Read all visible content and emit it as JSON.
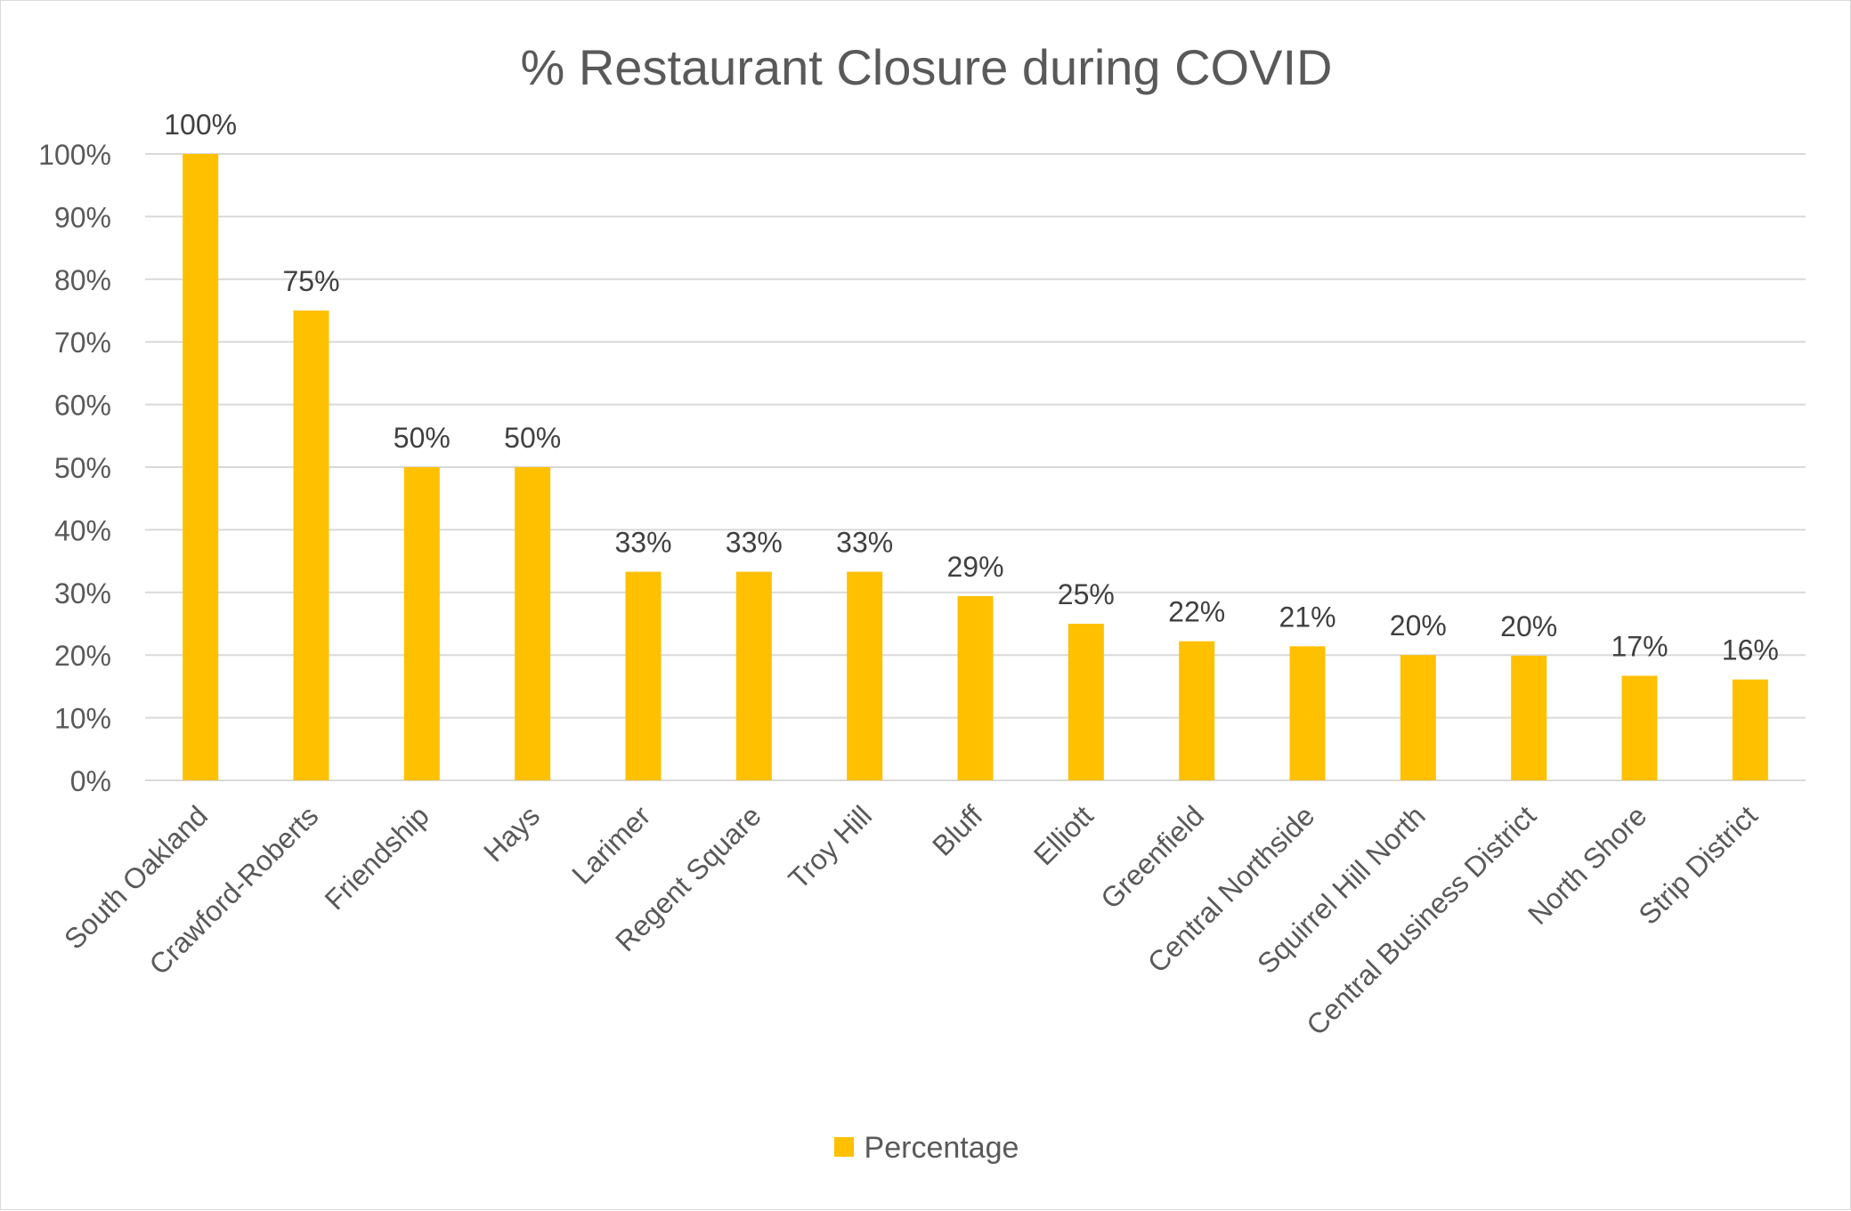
{
  "chart_data": {
    "type": "bar",
    "title": "% Restaurant Closure during COVID",
    "xlabel": "",
    "ylabel": "",
    "categories": [
      "South Oakland",
      "Crawford-Roberts",
      "Friendship",
      "Hays",
      "Larimer",
      "Regent Square",
      "Troy Hill",
      "Bluff",
      "Elliott",
      "Greenfield",
      "Central Northside",
      "Squirrel Hill North",
      "Central Business District",
      "North Shore",
      "Strip District"
    ],
    "series": [
      {
        "name": "Percentage",
        "color": "#ffc000",
        "values": [
          100,
          75,
          50,
          50,
          33.3,
          33.3,
          33.3,
          29.4,
          25,
          22.2,
          21.4,
          20,
          19.9,
          16.7,
          16.1
        ],
        "data_labels": [
          "100%",
          "75%",
          "50%",
          "50%",
          "33%",
          "33%",
          "33%",
          "29%",
          "25%",
          "22%",
          "21%",
          "20%",
          "20%",
          "17%",
          "16%"
        ]
      }
    ],
    "ylim": [
      0,
      100
    ],
    "yticks": [
      "0%",
      "10%",
      "20%",
      "30%",
      "40%",
      "50%",
      "60%",
      "70%",
      "80%",
      "90%",
      "100%"
    ],
    "grid": true,
    "legend_position": "bottom"
  }
}
